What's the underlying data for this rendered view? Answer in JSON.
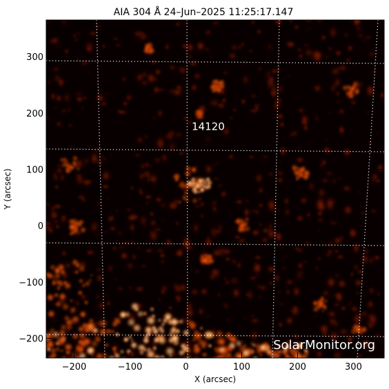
{
  "title": "AIA 304 Å 24–Jun–2025 11:25:17.147",
  "xlabel": "X (arcsec)",
  "ylabel": "Y (arcsec)",
  "watermark": "SolarMonitor.org",
  "colors": {
    "background": "#ffffff",
    "image_base": "#080000",
    "grid": "#ffffff",
    "emission_low": "#5a0800",
    "emission_mid": "#c23a00",
    "emission_high": "#ffb060",
    "emission_peak": "#fff6e0"
  },
  "axes": {
    "x_range": [
      -250,
      355
    ],
    "y_range": [
      -235,
      365
    ],
    "x_ticks": [
      {
        "value": -200,
        "label": "−200"
      },
      {
        "value": -100,
        "label": "−100"
      },
      {
        "value": 0,
        "label": "0"
      },
      {
        "value": 100,
        "label": "100"
      },
      {
        "value": 200,
        "label": "200"
      },
      {
        "value": 300,
        "label": "300"
      }
    ],
    "y_ticks": [
      {
        "value": -200,
        "label": "−200"
      },
      {
        "value": -100,
        "label": "−100"
      },
      {
        "value": 0,
        "label": "0"
      },
      {
        "value": 100,
        "label": "100"
      },
      {
        "value": 200,
        "label": "200"
      },
      {
        "value": 300,
        "label": "300"
      }
    ]
  },
  "regions": [
    {
      "label": "14120",
      "x": 40,
      "y": 170
    }
  ]
}
